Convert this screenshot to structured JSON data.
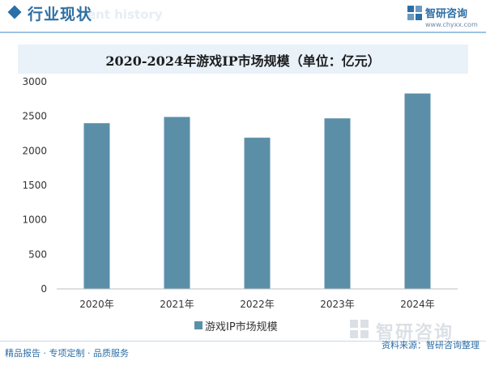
{
  "header": {
    "section_title": "行业现状",
    "section_subtitle": "ent history",
    "brand_name": "智研咨询",
    "brand_url": "www.chyxx.com"
  },
  "watermark": {
    "text": "智研咨询"
  },
  "footer": {
    "left": "精品报告 · 专项定制 · 品质服务",
    "source": "资料来源：智研咨询整理"
  },
  "colors": {
    "bar": "#5b8fa8",
    "accent": "#2c6ea6",
    "title_band": "#e9f1f9"
  },
  "chart_data": {
    "type": "bar",
    "title": "2020-2024年游戏IP市场规模（单位：亿元）",
    "categories": [
      "2020年",
      "2021年",
      "2022年",
      "2023年",
      "2024年"
    ],
    "series": [
      {
        "name": "游戏IP市场规模",
        "values": [
          2400,
          2490,
          2190,
          2470,
          2830
        ]
      }
    ],
    "ylim": [
      0,
      3000
    ],
    "yticks": [
      0,
      500,
      1000,
      1500,
      2000,
      2500,
      3000
    ],
    "grid": false,
    "legend_position": "bottom"
  }
}
